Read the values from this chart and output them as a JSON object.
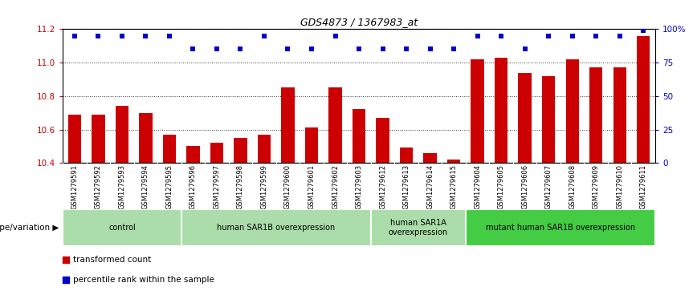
{
  "title": "GDS4873 / 1367983_at",
  "samples": [
    "GSM1279591",
    "GSM1279592",
    "GSM1279593",
    "GSM1279594",
    "GSM1279595",
    "GSM1279596",
    "GSM1279597",
    "GSM1279598",
    "GSM1279599",
    "GSM1279600",
    "GSM1279601",
    "GSM1279602",
    "GSM1279603",
    "GSM1279612",
    "GSM1279613",
    "GSM1279614",
    "GSM1279615",
    "GSM1279604",
    "GSM1279605",
    "GSM1279606",
    "GSM1279607",
    "GSM1279608",
    "GSM1279609",
    "GSM1279610",
    "GSM1279611"
  ],
  "bar_values": [
    10.69,
    10.69,
    10.74,
    10.7,
    10.57,
    10.5,
    10.52,
    10.55,
    10.57,
    10.85,
    10.61,
    10.85,
    10.72,
    10.67,
    10.49,
    10.46,
    10.42,
    11.02,
    11.03,
    10.94,
    10.92,
    11.02,
    10.97,
    10.97,
    11.16
  ],
  "percentile_values": [
    95,
    95,
    95,
    95,
    95,
    85,
    85,
    85,
    95,
    85,
    85,
    95,
    85,
    85,
    85,
    85,
    85,
    95,
    95,
    85,
    95,
    95,
    95,
    95,
    99
  ],
  "groups": [
    {
      "label": "control",
      "start": 0,
      "end": 5,
      "color": "#aaddaa"
    },
    {
      "label": "human SAR1B overexpression",
      "start": 5,
      "end": 13,
      "color": "#aaddaa"
    },
    {
      "label": "human SAR1A\noverexpression",
      "start": 13,
      "end": 17,
      "color": "#aaddaa"
    },
    {
      "label": "mutant human SAR1B overexpression",
      "start": 17,
      "end": 25,
      "color": "#44cc44"
    }
  ],
  "ylim_left": [
    10.4,
    11.2
  ],
  "ylim_right": [
    0,
    100
  ],
  "yticks_left": [
    10.4,
    10.6,
    10.8,
    11.0,
    11.2
  ],
  "yticks_right": [
    0,
    25,
    50,
    75,
    100
  ],
  "ytick_labels_right": [
    "0",
    "25",
    "50",
    "75",
    "100%"
  ],
  "bar_color": "#CC0000",
  "dot_color": "#0000CC",
  "bg_color": "#C8C8C8",
  "legend_bar": "transformed count",
  "legend_dot": "percentile rank within the sample",
  "group_row_label": "genotype/variation"
}
